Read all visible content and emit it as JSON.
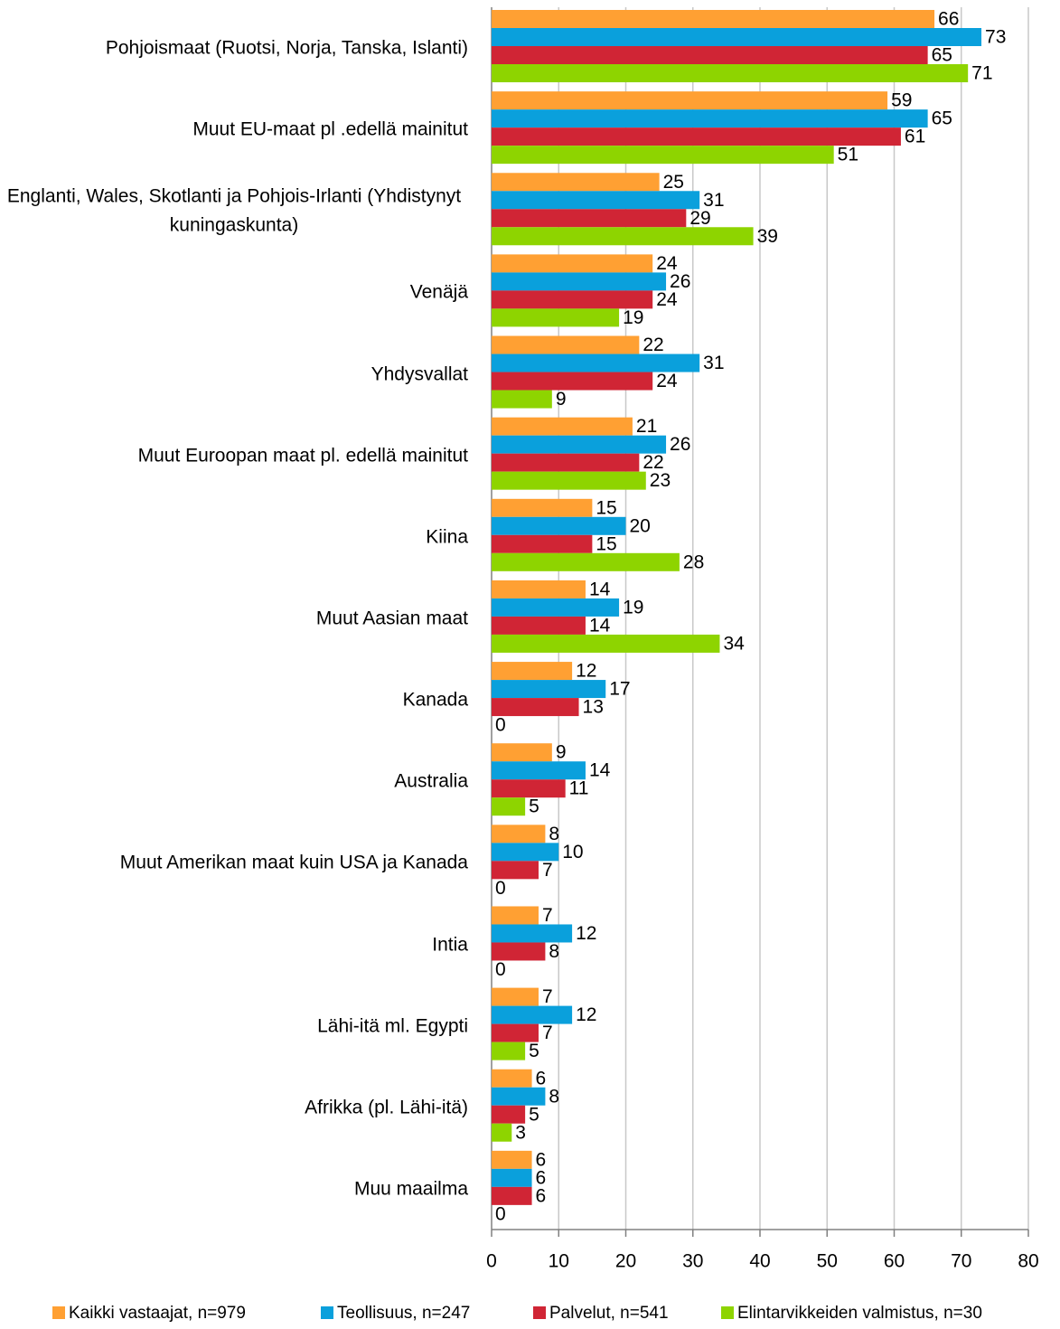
{
  "chart_data": {
    "type": "bar",
    "orientation": "horizontal",
    "categories": [
      "Pohjoismaat (Ruotsi, Norja, Tanska, Islanti)",
      "Muut EU-maat pl .edellä mainitut",
      "Englanti, Wales, Skotlanti ja Pohjois-Irlanti (Yhdistynyt kuningaskunta)",
      "Venäjä",
      "Yhdysvallat",
      "Muut Euroopan maat pl. edellä mainitut",
      "Kiina",
      "Muut Aasian maat",
      "Kanada",
      "Australia",
      "Muut Amerikan maat kuin USA ja Kanada",
      "Intia",
      "Lähi-itä ml. Egypti",
      "Afrikka (pl. Lähi-itä)",
      "Muu maailma"
    ],
    "series": [
      {
        "name": "Kaikki vastaajat, n=979",
        "color": "#ffa033",
        "values": [
          66,
          59,
          25,
          24,
          22,
          21,
          15,
          14,
          12,
          9,
          8,
          7,
          7,
          6,
          6
        ]
      },
      {
        "name": "Teollisuus, n=247",
        "color": "#0aa0dc",
        "values": [
          73,
          65,
          31,
          26,
          31,
          26,
          20,
          19,
          17,
          14,
          10,
          12,
          12,
          8,
          6
        ]
      },
      {
        "name": "Palvelut, n=541",
        "color": "#d02535",
        "values": [
          65,
          61,
          29,
          24,
          24,
          22,
          15,
          14,
          13,
          11,
          7,
          8,
          7,
          5,
          6
        ]
      },
      {
        "name": "Elintarvikkeiden valmistus, n=30",
        "color": "#8ed400",
        "values": [
          71,
          51,
          39,
          19,
          9,
          23,
          28,
          34,
          0,
          5,
          0,
          0,
          5,
          3,
          0
        ]
      }
    ],
    "xlim": [
      0,
      80
    ],
    "xticks": [
      0,
      10,
      20,
      30,
      40,
      50,
      60,
      70,
      80
    ],
    "grid": true,
    "legend": "bottom"
  }
}
